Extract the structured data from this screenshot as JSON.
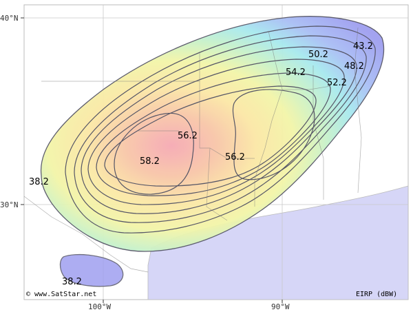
{
  "map": {
    "lat_labels": [
      "40°N",
      "30°N"
    ],
    "lon_labels": [
      "100°W",
      "90°W"
    ],
    "contour_values": [
      "58.2",
      "56.2",
      "56.2",
      "54.2",
      "52.2",
      "50.2",
      "48.2",
      "43.2",
      "38.2",
      "38.2"
    ],
    "copyright": "© www.SatStar.net",
    "unit_label": "EIRP (dBW)",
    "colors": {
      "water": "#d6d6f7",
      "outer_coverage": "#9f9ff0",
      "core": "#f6a9b4",
      "contour_line": "#555566"
    }
  }
}
